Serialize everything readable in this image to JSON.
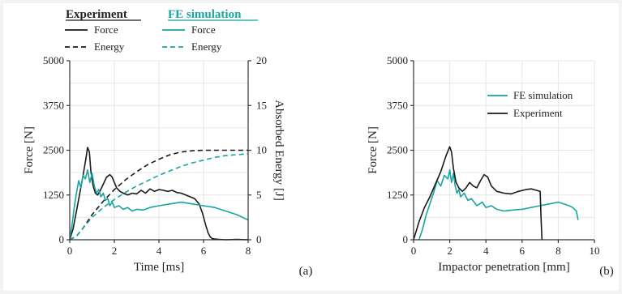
{
  "colors": {
    "experiment": "#1a1a1a",
    "simulation": "#16a5a0"
  },
  "legend_a": {
    "experiment_header": "Experiment",
    "simulation_header": "FE simulation",
    "force": "Force",
    "energy": "Energy"
  },
  "legend_b": {
    "simulation": "FE simulation",
    "experiment": "Experiment"
  },
  "chart_data": [
    {
      "panel": "(a)",
      "type": "line",
      "xlabel": "Time [ms]",
      "ylabel": "Force [N]",
      "y2label": "Absorbed Energy [J]",
      "xlim": [
        0,
        8
      ],
      "ylim": [
        0,
        5000
      ],
      "y2lim": [
        0,
        20
      ],
      "xticks": [
        0,
        2,
        4,
        6,
        8
      ],
      "yticks": [
        0,
        1250,
        2500,
        3750,
        5000
      ],
      "y2ticks": [
        0,
        5,
        10,
        15,
        20
      ],
      "grid": true,
      "legend_placement": "top",
      "series": [
        {
          "name": "Experiment Force",
          "axis": "left",
          "style": "solid",
          "color_key": "experiment",
          "x": [
            0,
            0.15,
            0.3,
            0.45,
            0.6,
            0.72,
            0.8,
            0.88,
            0.95,
            1.05,
            1.15,
            1.25,
            1.35,
            1.5,
            1.65,
            1.8,
            1.9,
            2.0,
            2.1,
            2.25,
            2.4,
            2.6,
            2.8,
            3.0,
            3.2,
            3.4,
            3.6,
            3.8,
            4.0,
            4.2,
            4.4,
            4.6,
            4.8,
            5.0,
            5.2,
            5.4,
            5.6,
            5.8,
            5.95,
            6.1,
            6.2,
            6.3,
            6.4,
            6.5,
            6.7,
            7.0,
            7.5,
            8.0
          ],
          "y": [
            0,
            300,
            800,
            1300,
            1800,
            2250,
            2580,
            2450,
            1900,
            1500,
            1300,
            1250,
            1350,
            1550,
            1750,
            1820,
            1750,
            1600,
            1450,
            1350,
            1300,
            1250,
            1300,
            1280,
            1380,
            1300,
            1420,
            1350,
            1400,
            1380,
            1350,
            1380,
            1320,
            1300,
            1250,
            1200,
            1150,
            1000,
            750,
            400,
            200,
            80,
            30,
            20,
            10,
            0,
            10,
            0
          ]
        },
        {
          "name": "Experiment Energy",
          "axis": "right",
          "style": "dashed",
          "color_key": "experiment",
          "x": [
            0,
            0.3,
            0.6,
            1.0,
            1.5,
            2.0,
            2.5,
            3.0,
            3.5,
            4.0,
            4.5,
            5.0,
            5.5,
            6.0,
            6.5,
            7.0,
            7.5,
            8.0
          ],
          "y": [
            0,
            0.4,
            1.3,
            2.8,
            4.3,
            5.6,
            6.7,
            7.6,
            8.4,
            9.0,
            9.5,
            9.8,
            9.95,
            10.0,
            10.0,
            10.0,
            10.0,
            10.0
          ]
        },
        {
          "name": "FE simulation Force",
          "axis": "left",
          "style": "solid",
          "color_key": "simulation",
          "x": [
            0,
            0.1,
            0.2,
            0.3,
            0.4,
            0.5,
            0.6,
            0.7,
            0.8,
            0.9,
            1.0,
            1.1,
            1.2,
            1.3,
            1.4,
            1.5,
            1.6,
            1.7,
            1.8,
            1.9,
            2.0,
            2.2,
            2.4,
            2.6,
            2.8,
            3.0,
            3.3,
            3.6,
            4.0,
            4.5,
            5.0,
            5.5,
            6.0,
            6.5,
            7.0,
            7.5,
            8.0
          ],
          "y": [
            0,
            400,
            900,
            1300,
            1650,
            1450,
            1800,
            1700,
            1950,
            1600,
            1850,
            1500,
            1300,
            1400,
            1200,
            1300,
            1100,
            1150,
            950,
            1050,
            900,
            950,
            850,
            900,
            800,
            850,
            830,
            900,
            950,
            1000,
            1050,
            1000,
            950,
            900,
            800,
            700,
            550
          ]
        },
        {
          "name": "FE simulation Energy",
          "axis": "right",
          "style": "dashed",
          "color_key": "simulation",
          "x": [
            0,
            0.3,
            0.6,
            1.0,
            1.5,
            2.0,
            2.5,
            3.0,
            3.5,
            4.0,
            4.5,
            5.0,
            5.5,
            6.0,
            6.5,
            7.0,
            7.5,
            8.0
          ],
          "y": [
            0,
            0.4,
            1.3,
            2.5,
            3.6,
            4.5,
            5.3,
            6.0,
            6.6,
            7.2,
            7.7,
            8.2,
            8.6,
            8.9,
            9.2,
            9.4,
            9.5,
            9.6
          ]
        }
      ]
    },
    {
      "panel": "(b)",
      "type": "line",
      "xlabel": "Impactor penetration [mm]",
      "ylabel": "Force [N]",
      "xlim": [
        0,
        10
      ],
      "ylim": [
        0,
        5000
      ],
      "xticks": [
        0,
        2,
        4,
        6,
        8,
        10
      ],
      "yticks": [
        0,
        1250,
        2500,
        3750,
        5000
      ],
      "grid": true,
      "legend_placement": "top-right",
      "series": [
        {
          "name": "FE simulation",
          "color_key": "simulation",
          "style": "solid",
          "x": [
            0.3,
            0.5,
            0.7,
            0.9,
            1.1,
            1.3,
            1.5,
            1.7,
            1.9,
            2.0,
            2.1,
            2.2,
            2.3,
            2.4,
            2.5,
            2.6,
            2.8,
            3.0,
            3.2,
            3.5,
            3.8,
            4.0,
            4.3,
            4.6,
            5.0,
            5.5,
            6.0,
            6.5,
            7.0,
            7.5,
            8.0,
            8.3,
            8.6,
            8.8,
            9.0,
            9.1
          ],
          "y": [
            0,
            300,
            700,
            1000,
            1300,
            1650,
            1500,
            1800,
            1700,
            1950,
            1600,
            1850,
            1500,
            1300,
            1400,
            1200,
            1300,
            1100,
            1150,
            950,
            1050,
            900,
            950,
            850,
            800,
            830,
            850,
            900,
            950,
            1000,
            1050,
            1000,
            950,
            900,
            800,
            550
          ]
        },
        {
          "name": "Experiment",
          "color_key": "experiment",
          "style": "solid",
          "x": [
            0,
            0.3,
            0.6,
            0.9,
            1.2,
            1.5,
            1.8,
            2.0,
            2.1,
            2.2,
            2.35,
            2.5,
            2.7,
            2.9,
            3.1,
            3.3,
            3.5,
            3.7,
            3.9,
            4.1,
            4.3,
            4.6,
            5.0,
            5.4,
            5.8,
            6.2,
            6.5,
            6.8,
            7.0,
            7.05,
            7.1
          ],
          "y": [
            0,
            500,
            900,
            1200,
            1550,
            1900,
            2350,
            2600,
            2450,
            2000,
            1600,
            1450,
            1350,
            1450,
            1600,
            1500,
            1450,
            1650,
            1820,
            1750,
            1500,
            1350,
            1300,
            1280,
            1350,
            1400,
            1420,
            1380,
            1350,
            600,
            0
          ]
        }
      ]
    }
  ]
}
